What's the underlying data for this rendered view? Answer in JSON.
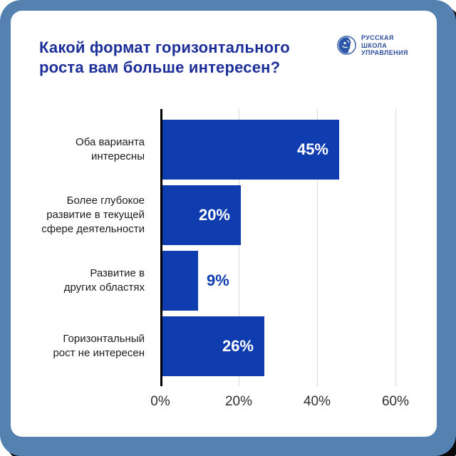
{
  "poster": {
    "title": "Какой формат горизонтального роста вам больше интересен?",
    "title_line1": "Какой формат горизонтального",
    "title_line2": "роста вам больше интересен?"
  },
  "logo": {
    "name": "Русская школа управления",
    "lines": [
      "РУССКАЯ",
      "ШКОЛА",
      "УПРАВЛЕНИЯ"
    ]
  },
  "colors": {
    "frame_blue": "#5481b0",
    "bar_blue": "#0f3caf",
    "title_navy": "#1d2f99",
    "logo_blue": "#2e4e9c",
    "gridline_gray": "#d9d9d9",
    "axis_black": "#000000"
  },
  "chart_data": {
    "type": "bar",
    "orientation": "horizontal",
    "title": "Какой формат горизонтального роста вам больше интересен?",
    "categories": [
      "Оба варианта интересны",
      "Более глубокое развитие в текущей сфере деятельности",
      "Развитие в других областях",
      "Горизонтальный рост не интересен"
    ],
    "category_lines": [
      [
        "Оба варианта",
        "интересны"
      ],
      [
        "Более глубокое",
        "развитие в текущей",
        "сфере деятельности"
      ],
      [
        "Развитие в",
        "других областях"
      ],
      [
        "Горизонтальный",
        "рост не интересен"
      ]
    ],
    "values": [
      45,
      20,
      9,
      26
    ],
    "value_labels": [
      "45%",
      "20%",
      "9%",
      "26%"
    ],
    "value_label_position": [
      "inside",
      "inside",
      "outside",
      "inside"
    ],
    "x_tick_labels": [
      "0%",
      "20%",
      "40%",
      "60%"
    ],
    "x_tick_values": [
      0,
      20,
      40,
      60
    ],
    "xlim": [
      0,
      66
    ],
    "grid": true,
    "legend": false,
    "bar_color": "#0f3caf",
    "value_text_inside_color": "#ffffff"
  }
}
